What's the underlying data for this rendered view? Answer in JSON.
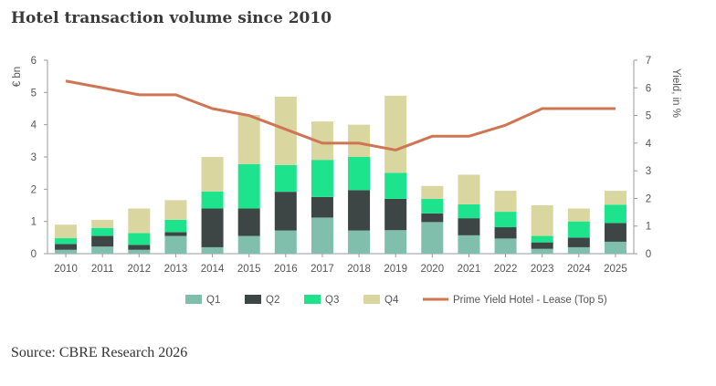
{
  "header": {
    "title": "Hotel transaction volume since 2010"
  },
  "footer": {
    "source": "Source: CBRE Research 2026"
  },
  "chart_data": {
    "type": "bar",
    "stacked": true,
    "categories": [
      "2010",
      "2011",
      "2012",
      "2013",
      "2014",
      "2015",
      "2016",
      "2017",
      "2018",
      "2019",
      "2020",
      "2021",
      "2022",
      "2023",
      "2024",
      "2025"
    ],
    "series": [
      {
        "name": "Q1",
        "type": "bar",
        "color": "#7fbfac",
        "values": [
          0.12,
          0.22,
          0.12,
          0.55,
          0.2,
          0.55,
          0.72,
          1.12,
          0.72,
          0.73,
          0.98,
          0.57,
          0.47,
          0.15,
          0.2,
          0.37
        ]
      },
      {
        "name": "Q2",
        "type": "bar",
        "color": "#3d4545",
        "values": [
          0.18,
          0.33,
          0.15,
          0.12,
          1.2,
          0.85,
          1.2,
          0.64,
          1.25,
          0.97,
          0.27,
          0.53,
          0.35,
          0.2,
          0.3,
          0.58
        ]
      },
      {
        "name": "Q3",
        "type": "bar",
        "color": "#1de38d",
        "values": [
          0.18,
          0.25,
          0.37,
          0.38,
          0.53,
          1.38,
          0.83,
          1.15,
          1.03,
          0.81,
          0.45,
          0.43,
          0.48,
          0.2,
          0.5,
          0.57
        ]
      },
      {
        "name": "Q4",
        "type": "bar",
        "color": "#d9d69f",
        "values": [
          0.42,
          0.25,
          0.76,
          0.61,
          1.07,
          1.52,
          2.12,
          1.19,
          1.0,
          2.39,
          0.4,
          0.92,
          0.65,
          0.95,
          0.4,
          0.43
        ]
      },
      {
        "name": "Prime Yield Hotel - Lease (Top 5)",
        "type": "line",
        "axis": "right",
        "color": "#cf7553",
        "values": [
          6.25,
          6.0,
          5.75,
          5.75,
          5.25,
          5.0,
          4.5,
          4.0,
          4.0,
          3.75,
          4.25,
          4.25,
          4.65,
          5.25,
          5.25,
          5.25
        ]
      }
    ],
    "ylabel": "€ bn",
    "ylabel_right": "Yield, in %",
    "ylim": [
      0,
      6
    ],
    "ylim_right": [
      0,
      7
    ],
    "yticks": [
      0,
      1,
      2,
      3,
      4,
      5,
      6
    ],
    "yticks_right": [
      0,
      1,
      2,
      3,
      4,
      5,
      6,
      7
    ],
    "grid": false,
    "legend": "bottom-center"
  }
}
